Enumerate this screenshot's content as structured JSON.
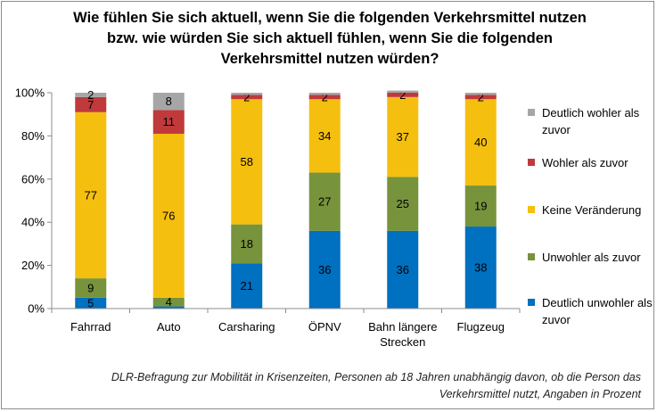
{
  "chart_data": {
    "type": "bar",
    "stacked": true,
    "percent": true,
    "title": "Wie fühlen Sie sich aktuell, wenn Sie die folgenden Verkehrsmittel nutzen bzw. wie würden Sie sich aktuell fühlen, wenn Sie die folgenden Verkehrsmittel nutzen würden?",
    "categories": [
      [
        "Fahrrad"
      ],
      [
        "Auto"
      ],
      [
        "Carsharing"
      ],
      [
        "ÖPNV"
      ],
      [
        "Bahn längere",
        "Strecken"
      ],
      [
        "Flugzeug"
      ]
    ],
    "series": [
      {
        "name": "Deutlich unwohler als zuvor",
        "color": "#0070c0",
        "values": [
          5,
          1,
          21,
          36,
          36,
          38
        ]
      },
      {
        "name": "Unwohler als zuvor",
        "color": "#77933c",
        "values": [
          9,
          4,
          18,
          27,
          25,
          19
        ]
      },
      {
        "name": "Keine Veränderung",
        "color": "#f5bf0f",
        "values": [
          77,
          76,
          58,
          34,
          37,
          40
        ]
      },
      {
        "name": "Wohler als zuvor",
        "color": "#c0393b",
        "values": [
          7,
          11,
          2,
          2,
          2,
          2
        ]
      },
      {
        "name": "Deutlich wohler als zuvor",
        "color": "#a6a6a6",
        "values": [
          2,
          8,
          1,
          1,
          1,
          1
        ]
      }
    ],
    "segment_labels": [
      [
        "5",
        "",
        "21",
        "36",
        "36",
        "38"
      ],
      [
        "9",
        "4",
        "18",
        "27",
        "25",
        "19"
      ],
      [
        "77",
        "76",
        "58",
        "34",
        "37",
        "40"
      ],
      [
        "7",
        "11",
        "2",
        "2",
        "2",
        "2"
      ],
      [
        "2",
        "8",
        "",
        "",
        "",
        ""
      ]
    ],
    "yticks": [
      "0%",
      "20%",
      "40%",
      "60%",
      "80%",
      "100%"
    ],
    "ylim": [
      0,
      100
    ],
    "grid": false,
    "legend_position": "right",
    "legend_order": [
      "Deutlich wohler als zuvor",
      "Wohler als zuvor",
      "Keine Veränderung",
      "Unwohler als zuvor",
      "Deutlich unwohler als zuvor"
    ]
  },
  "footnote": "DLR-Befragung zur Mobilität in Krisenzeiten, Personen ab 18 Jahren unabhängig davon, ob die Person das Verkehrsmittel nutzt, Angaben in Prozent"
}
